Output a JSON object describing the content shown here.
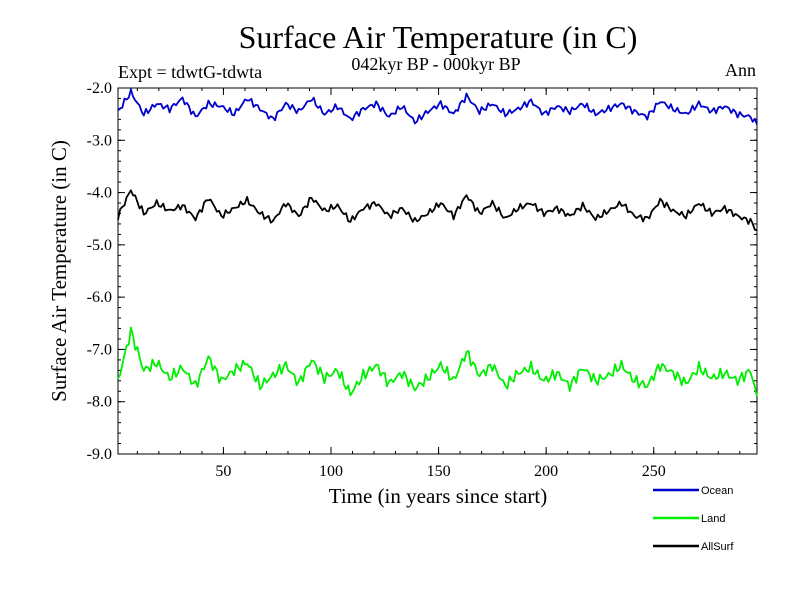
{
  "chart_data": {
    "type": "line",
    "title": "Surface Air Temperature (in C)",
    "subtitle_left": "Expt = tdwtG-tdwta",
    "subtitle_center": "042kyr BP - 000kyr BP",
    "subtitle_right": "Ann",
    "xlabel": "Time (in years since start)",
    "ylabel": "Surface Air Temperature (in C)",
    "xlim": [
      1,
      298
    ],
    "ylim": [
      -9.0,
      -2.0
    ],
    "x_ticks": [
      50,
      100,
      150,
      200,
      250
    ],
    "y_ticks": [
      -2.0,
      -3.0,
      -4.0,
      -5.0,
      -6.0,
      -7.0,
      -8.0,
      -9.0
    ],
    "y_tick_labels": [
      "-2.0",
      "-3.0",
      "-4.0",
      "-5.0",
      "-6.0",
      "-7.0",
      "-8.0",
      "-9.0"
    ],
    "legend_position": "bottom-right, outside plot",
    "series": [
      {
        "name": "Ocean",
        "color": "#0000cc",
        "x": [
          1,
          7,
          13,
          19,
          25,
          31,
          37,
          43,
          49,
          55,
          61,
          67,
          73,
          79,
          85,
          91,
          97,
          103,
          109,
          115,
          121,
          127,
          133,
          139,
          145,
          151,
          157,
          163,
          169,
          175,
          181,
          187,
          193,
          199,
          205,
          211,
          217,
          223,
          229,
          235,
          241,
          247,
          253,
          259,
          265,
          271,
          277,
          283,
          289,
          295,
          298
        ],
        "values": [
          -2.45,
          -2.08,
          -2.5,
          -2.3,
          -2.4,
          -2.2,
          -2.55,
          -2.3,
          -2.35,
          -2.5,
          -2.2,
          -2.4,
          -2.6,
          -2.3,
          -2.45,
          -2.2,
          -2.5,
          -2.35,
          -2.6,
          -2.4,
          -2.3,
          -2.55,
          -2.35,
          -2.65,
          -2.45,
          -2.3,
          -2.5,
          -2.15,
          -2.45,
          -2.3,
          -2.5,
          -2.4,
          -2.25,
          -2.5,
          -2.35,
          -2.45,
          -2.3,
          -2.5,
          -2.4,
          -2.3,
          -2.45,
          -2.55,
          -2.25,
          -2.4,
          -2.5,
          -2.3,
          -2.45,
          -2.35,
          -2.5,
          -2.55,
          -2.7
        ]
      },
      {
        "name": "AllSurf",
        "color": "#000000",
        "x": [
          1,
          7,
          13,
          19,
          25,
          31,
          37,
          43,
          49,
          55,
          61,
          67,
          73,
          79,
          85,
          91,
          97,
          103,
          109,
          115,
          121,
          127,
          133,
          139,
          145,
          151,
          157,
          163,
          169,
          175,
          181,
          187,
          193,
          199,
          205,
          211,
          217,
          223,
          229,
          235,
          241,
          247,
          253,
          259,
          265,
          271,
          277,
          283,
          289,
          295,
          298
        ],
        "values": [
          -4.45,
          -3.95,
          -4.4,
          -4.2,
          -4.35,
          -4.25,
          -4.5,
          -4.1,
          -4.45,
          -4.3,
          -4.15,
          -4.4,
          -4.55,
          -4.2,
          -4.45,
          -4.1,
          -4.35,
          -4.25,
          -4.55,
          -4.3,
          -4.2,
          -4.45,
          -4.3,
          -4.55,
          -4.4,
          -4.2,
          -4.45,
          -4.05,
          -4.4,
          -4.2,
          -4.5,
          -4.3,
          -4.2,
          -4.4,
          -4.3,
          -4.45,
          -4.25,
          -4.5,
          -4.35,
          -4.2,
          -4.45,
          -4.5,
          -4.15,
          -4.35,
          -4.45,
          -4.2,
          -4.4,
          -4.3,
          -4.45,
          -4.55,
          -4.72
        ]
      },
      {
        "name": "Land",
        "color": "#00ee00",
        "x": [
          1,
          7,
          13,
          19,
          25,
          31,
          37,
          43,
          49,
          55,
          61,
          67,
          73,
          79,
          85,
          91,
          97,
          103,
          109,
          115,
          121,
          127,
          133,
          139,
          145,
          151,
          157,
          163,
          169,
          175,
          181,
          187,
          193,
          199,
          205,
          211,
          217,
          223,
          229,
          235,
          241,
          247,
          253,
          259,
          265,
          271,
          277,
          283,
          289,
          295,
          298
        ],
        "values": [
          -7.6,
          -6.65,
          -7.4,
          -7.25,
          -7.55,
          -7.35,
          -7.7,
          -7.15,
          -7.6,
          -7.4,
          -7.25,
          -7.7,
          -7.5,
          -7.3,
          -7.65,
          -7.2,
          -7.55,
          -7.4,
          -7.85,
          -7.5,
          -7.3,
          -7.65,
          -7.45,
          -7.75,
          -7.55,
          -7.3,
          -7.6,
          -7.05,
          -7.5,
          -7.3,
          -7.7,
          -7.45,
          -7.35,
          -7.6,
          -7.45,
          -7.7,
          -7.35,
          -7.6,
          -7.5,
          -7.3,
          -7.6,
          -7.7,
          -7.3,
          -7.45,
          -7.65,
          -7.35,
          -7.55,
          -7.45,
          -7.6,
          -7.4,
          -7.9
        ]
      }
    ]
  },
  "legend": {
    "items": [
      {
        "label": "Ocean",
        "color": "#0000cc"
      },
      {
        "label": "Land",
        "color": "#00ee00"
      },
      {
        "label": "AllSurf",
        "color": "#000000"
      }
    ]
  }
}
